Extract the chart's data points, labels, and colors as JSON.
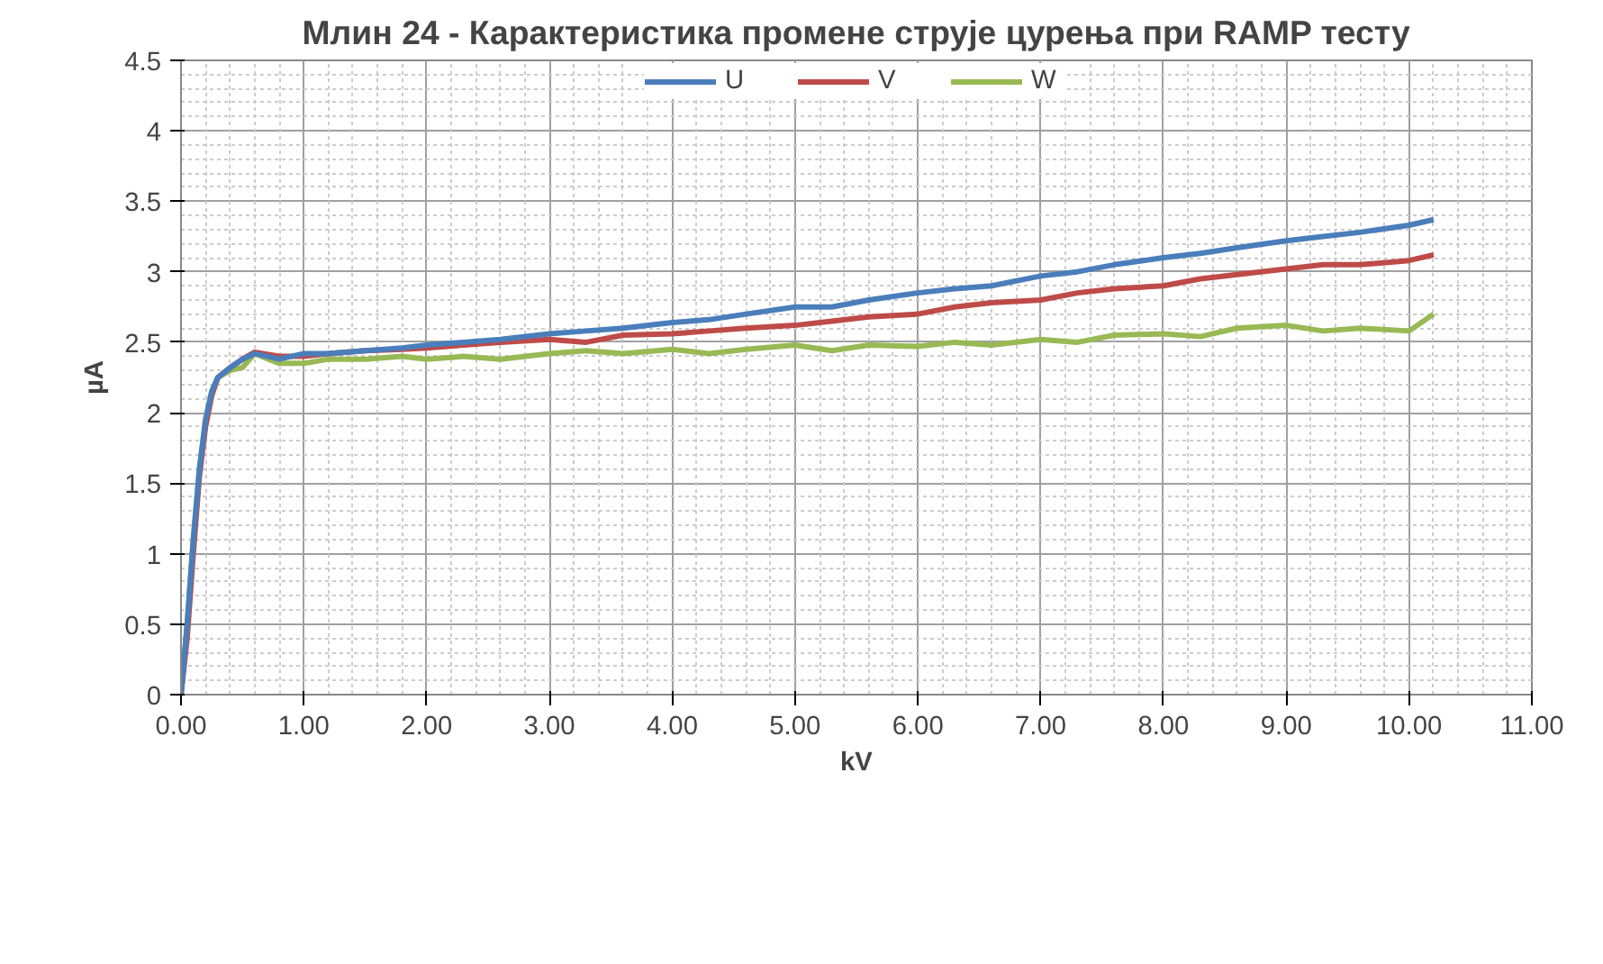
{
  "chart_data": {
    "type": "line",
    "title": "Млин 24 - Карактеристика промене струје цурења при RAMP тесту",
    "xlabel": "kV",
    "ylabel": "µA",
    "x": [
      0,
      0.05,
      0.1,
      0.15,
      0.2,
      0.25,
      0.3,
      0.4,
      0.5,
      0.6,
      0.8,
      1.0,
      1.2,
      1.5,
      1.8,
      2.0,
      2.3,
      2.6,
      3.0,
      3.3,
      3.6,
      4.0,
      4.3,
      4.6,
      5.0,
      5.3,
      5.6,
      6.0,
      6.3,
      6.6,
      7.0,
      7.3,
      7.6,
      8.0,
      8.3,
      8.6,
      9.0,
      9.3,
      9.6,
      10.0,
      10.2
    ],
    "series": [
      {
        "name": "U",
        "color": "#4a7ebb",
        "values": [
          0,
          0.5,
          1.1,
          1.6,
          1.95,
          2.15,
          2.25,
          2.32,
          2.38,
          2.42,
          2.38,
          2.42,
          2.42,
          2.44,
          2.46,
          2.48,
          2.5,
          2.52,
          2.56,
          2.58,
          2.6,
          2.64,
          2.66,
          2.7,
          2.75,
          2.75,
          2.8,
          2.85,
          2.88,
          2.9,
          2.97,
          3.0,
          3.05,
          3.1,
          3.13,
          3.17,
          3.22,
          3.25,
          3.28,
          3.33,
          3.37
        ]
      },
      {
        "name": "V",
        "color": "#be4b48",
        "values": [
          0,
          0.4,
          1.0,
          1.55,
          1.9,
          2.12,
          2.25,
          2.32,
          2.38,
          2.43,
          2.4,
          2.4,
          2.42,
          2.44,
          2.45,
          2.46,
          2.48,
          2.5,
          2.52,
          2.5,
          2.55,
          2.56,
          2.58,
          2.6,
          2.62,
          2.65,
          2.68,
          2.7,
          2.75,
          2.78,
          2.8,
          2.85,
          2.88,
          2.9,
          2.95,
          2.98,
          3.02,
          3.05,
          3.05,
          3.08,
          3.12
        ]
      },
      {
        "name": "W",
        "color": "#98b954",
        "values": [
          0,
          0.5,
          1.1,
          1.6,
          1.95,
          2.15,
          2.25,
          2.3,
          2.32,
          2.42,
          2.35,
          2.35,
          2.38,
          2.38,
          2.4,
          2.38,
          2.4,
          2.38,
          2.42,
          2.44,
          2.42,
          2.45,
          2.42,
          2.45,
          2.48,
          2.44,
          2.48,
          2.47,
          2.5,
          2.48,
          2.52,
          2.5,
          2.55,
          2.56,
          2.54,
          2.6,
          2.62,
          2.58,
          2.6,
          2.58,
          2.7
        ]
      }
    ],
    "xlim": [
      0,
      11
    ],
    "ylim": [
      0,
      4.5
    ],
    "xticks": [
      {
        "value": 0,
        "label": "0.00"
      },
      {
        "value": 1,
        "label": "1.00"
      },
      {
        "value": 2,
        "label": "2.00"
      },
      {
        "value": 3,
        "label": "3.00"
      },
      {
        "value": 4,
        "label": "4.00"
      },
      {
        "value": 5,
        "label": "5.00"
      },
      {
        "value": 6,
        "label": "6.00"
      },
      {
        "value": 7,
        "label": "7.00"
      },
      {
        "value": 8,
        "label": "8.00"
      },
      {
        "value": 9,
        "label": "9.00"
      },
      {
        "value": 10,
        "label": "10.00"
      },
      {
        "value": 11,
        "label": "11.00"
      }
    ],
    "yticks": [
      0,
      0.5,
      1,
      1.5,
      2,
      2.5,
      3,
      3.5,
      4,
      4.5
    ],
    "grid": true,
    "legend": "top",
    "marker": "none",
    "line_style": "solid"
  }
}
